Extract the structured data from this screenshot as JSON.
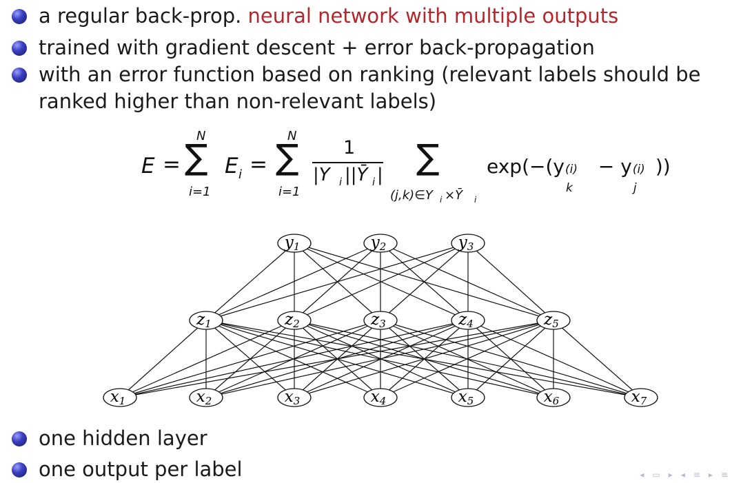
{
  "bullets_top": [
    {
      "text": "a regular back-prop. ",
      "highlight": "neural network with multiple outputs"
    },
    {
      "text": "trained with gradient descent + error back-propagation",
      "highlight": ""
    },
    {
      "text": "with an error function based on ranking (relevant labels should be",
      "highlight": ""
    }
  ],
  "bullet3_cont": "ranked higher than non-relevant labels)",
  "formula": {
    "E": "E",
    "eq": "=",
    "sum_top": "N",
    "sum_bottom": "i=1",
    "sigma": "∑",
    "Ei": "E",
    "i_sub": "i",
    "frac_num": "1",
    "frac_den": "|Y",
    "den_mid": "||Ȳ",
    "den_end": "|",
    "pair_sum_sub": "(j,k)∈Y",
    "pair_sum_x": "×Ȳ",
    "exp": "exp(−(y",
    "k": "k",
    "sup": "(i)",
    "minus": " − y",
    "j": "j",
    "close": "))"
  },
  "network": {
    "outputs": [
      "y1",
      "y2",
      "y3"
    ],
    "hidden": [
      "z1",
      "z2",
      "z3",
      "z4",
      "z5"
    ],
    "inputs": [
      "x1",
      "x2",
      "x3",
      "x4",
      "x5",
      "x6",
      "x7"
    ]
  },
  "bullets_bottom": [
    "one hidden layer",
    "one output per label"
  ],
  "colors": {
    "highlight": "#b3262b",
    "bullet_dot": "#3a3fc0",
    "nav": "#b8b8cc"
  },
  "nav_icons": [
    "prev-icon",
    "next-icon",
    "frame-prev-icon",
    "frame-next-icon",
    "section-prev-icon",
    "section-next-icon",
    "subsection-icon"
  ]
}
